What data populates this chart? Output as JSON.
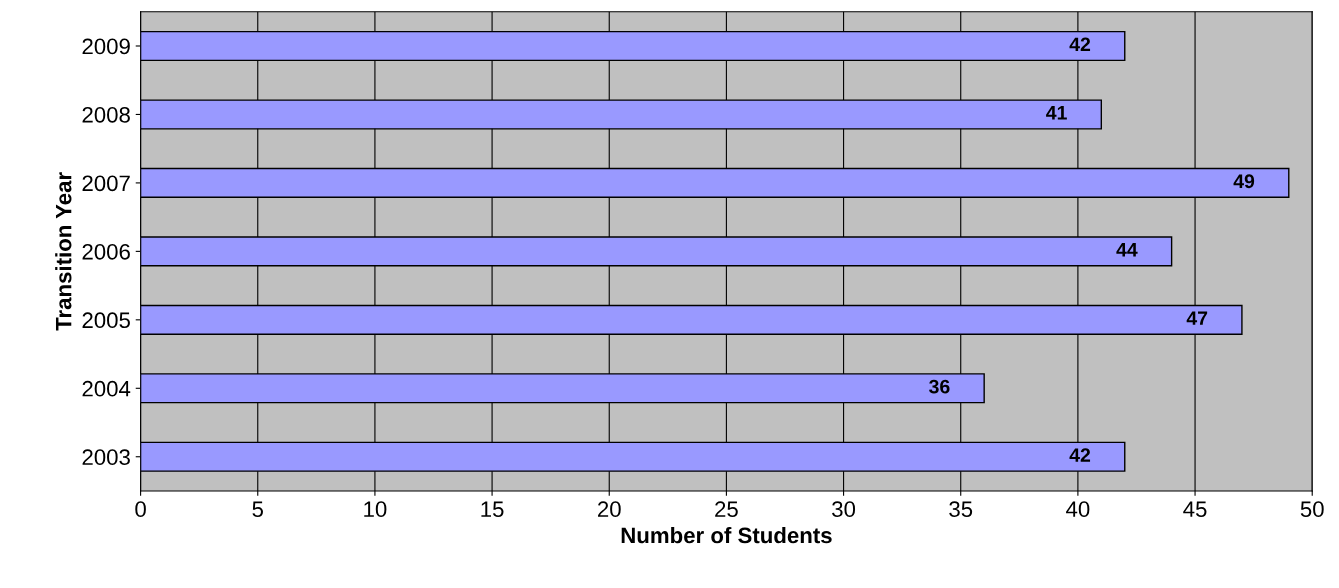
{
  "chart_data": {
    "type": "bar",
    "orientation": "horizontal",
    "xlabel": "Number of Students",
    "ylabel": "Transition Year",
    "categories": [
      "2009",
      "2008",
      "2007",
      "2006",
      "2005",
      "2004",
      "2003"
    ],
    "values": [
      42,
      41,
      49,
      44,
      47,
      36,
      42
    ],
    "color": "#9999ff",
    "xlim": [
      0,
      50
    ],
    "xticks": [
      0,
      5,
      10,
      15,
      20,
      25,
      30,
      35,
      40,
      45,
      50
    ],
    "grid": "x",
    "data_labels": true
  }
}
